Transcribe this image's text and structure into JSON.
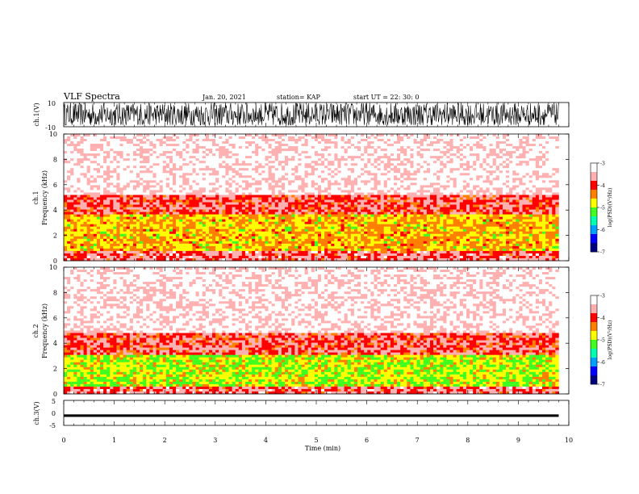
{
  "header": {
    "title": "VLF Spectra",
    "date": "Jan. 20, 2021",
    "station": "station= KAP",
    "start": "start UT = 22: 30: 0"
  },
  "colors": {
    "trace": "#000000",
    "colormap": [
      "#00007f",
      "#0000ff",
      "#00a0ff",
      "#00ffb0",
      "#40ff20",
      "#ffff00",
      "#ff8000",
      "#ff0000",
      "#ffb0b0",
      "#ffffff"
    ]
  },
  "chart_data": [
    {
      "type": "line",
      "panel": "ch1-waveform",
      "ylabel": "ch.1(V)",
      "ylim": [
        -10,
        10
      ],
      "yticks": [
        "10",
        "-10"
      ],
      "description_of_signal": "dense noise trace filling roughly -8 to 10 V across 0–9.8 min",
      "x_range": [
        0,
        9.8
      ]
    },
    {
      "type": "heatmap",
      "panel": "ch1-spectrogram",
      "ylabel_channel": "ch.1",
      "ylabel": "Frequency (kHz)",
      "ylim": [
        0,
        10
      ],
      "yticks": [
        "0",
        "2",
        "4",
        "6",
        "8",
        "10"
      ],
      "colorbar": {
        "label": "log(PSD)(V²/Hz)",
        "range": [
          -7,
          -3
        ],
        "ticks": [
          "-3",
          "-4",
          "-5",
          "-6",
          "-7"
        ]
      },
      "bands_khz": [
        {
          "from": 0,
          "to": 0.8,
          "level": -3.8
        },
        {
          "from": 0.8,
          "to": 3.6,
          "level": -4.6
        },
        {
          "from": 3.6,
          "to": 5.2,
          "level": -3.9
        },
        {
          "from": 5.2,
          "to": 10,
          "level": -3.3
        }
      ]
    },
    {
      "type": "heatmap",
      "panel": "ch2-spectrogram",
      "ylabel_channel": "ch.2",
      "ylabel": "Frequency (kHz)",
      "ylim": [
        0,
        10
      ],
      "yticks": [
        "0",
        "2",
        "4",
        "6",
        "8",
        "10"
      ],
      "colorbar": {
        "label": "log(PSD)(V²/Hz)",
        "range": [
          -7,
          -3
        ],
        "ticks": [
          "-3",
          "-4",
          "-5",
          "-6",
          "-7"
        ]
      },
      "bands_khz": [
        {
          "from": 0,
          "to": 0.6,
          "level": -3.8
        },
        {
          "from": 0.6,
          "to": 3.1,
          "level": -4.9
        },
        {
          "from": 3.1,
          "to": 4.8,
          "level": -3.9
        },
        {
          "from": 4.8,
          "to": 10,
          "level": -3.3
        }
      ]
    },
    {
      "type": "line",
      "panel": "ch3-waveform",
      "ylabel": "ch.3(V)",
      "ylim": [
        -5,
        5
      ],
      "yticks": [
        "5",
        "0",
        "-5"
      ],
      "level_band_volts": [
        -1.6,
        -0.6
      ],
      "x_range": [
        0,
        9.8
      ],
      "xlabel": "Time (min)",
      "xlim": [
        0,
        10
      ],
      "xticks": [
        "0",
        "1",
        "2",
        "3",
        "4",
        "5",
        "6",
        "7",
        "8",
        "9",
        "10"
      ]
    }
  ]
}
